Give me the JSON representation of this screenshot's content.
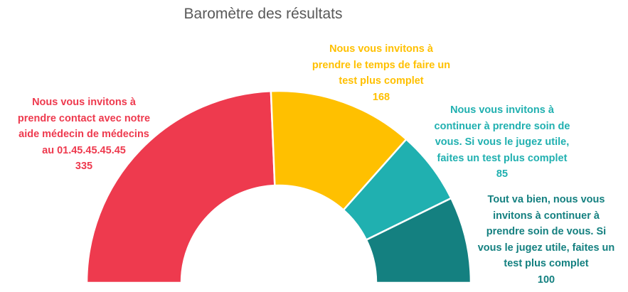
{
  "chart_data": {
    "type": "pie",
    "variant": "half-doughnut",
    "title": "Baromètre des résultats",
    "slices": [
      {
        "label_lines": [
          "Nous vous invitons à",
          "prendre contact avec notre",
          "aide médecin de médecins",
          "au 01.45.45.45.45"
        ],
        "value": 335,
        "color": "#EE3A4E"
      },
      {
        "label_lines": [
          "Nous vous invitons à",
          "prendre le temps de faire un",
          "test plus complet"
        ],
        "value": 168,
        "color": "#FFC000"
      },
      {
        "label_lines": [
          "Nous vous invitons à",
          "continuer à prendre soin de",
          "vous. Si vous le jugez utile,",
          "faites un test plus complet"
        ],
        "value": 85,
        "color": "#20B0B0"
      },
      {
        "label_lines": [
          "Tout va bien, nous vous",
          "invitons à continuer à",
          "prendre soin de vous. Si",
          "vous le jugez utile, faites un",
          "test plus complet"
        ],
        "value": 100,
        "color": "#148080"
      }
    ],
    "label_colors": [
      "#EE3A4E",
      "#FFC000",
      "#20B0B0",
      "#148080"
    ],
    "legend": "none"
  }
}
